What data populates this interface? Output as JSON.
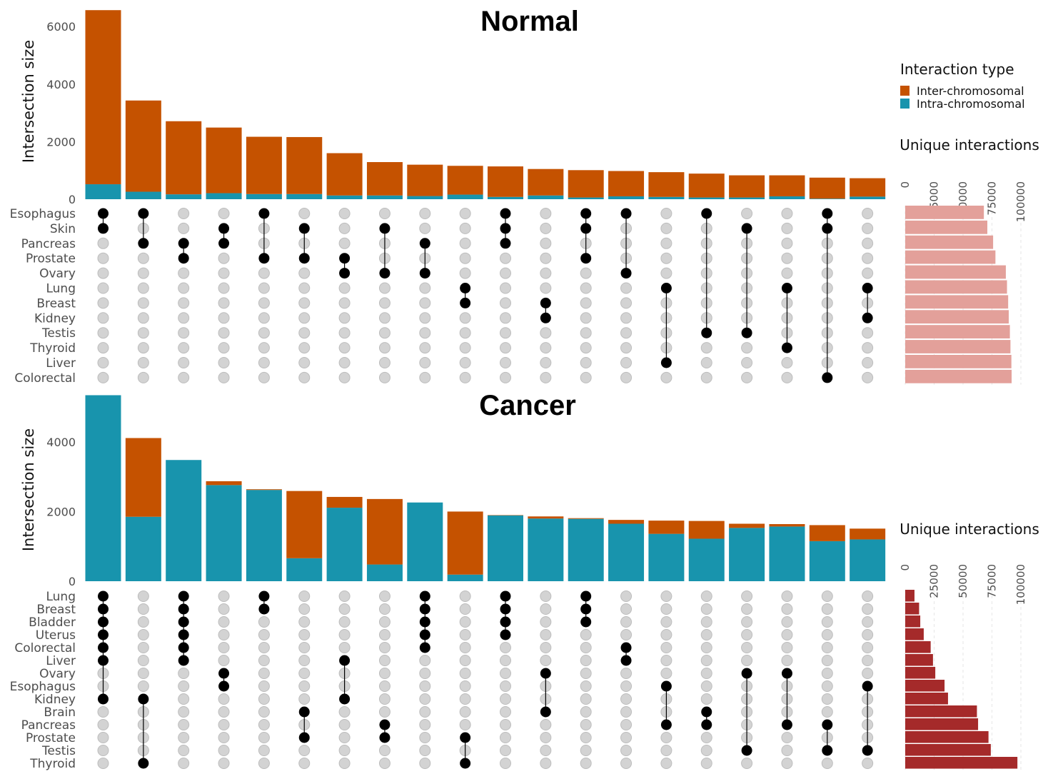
{
  "colors": {
    "inter": "#C55200",
    "intra": "#1894AD",
    "dot_on": "#000000",
    "dot_off": "#D3D3D3",
    "normal_unique_bar": "#E3A09A",
    "cancer_unique_bar": "#A52A2A"
  },
  "legend": {
    "title": "Interaction type",
    "items": [
      "Inter-chromosomal",
      "Intra-chromosomal"
    ]
  },
  "chart_data": [
    {
      "type": "bar",
      "title": "Normal",
      "ylabel": "Intersection size",
      "ylim": [
        0,
        6600
      ],
      "yticks": [
        "0",
        "2000",
        "4000",
        "6000"
      ],
      "sets": [
        "Esophagus",
        "Skin",
        "Pancreas",
        "Prostate",
        "Ovary",
        "Lung",
        "Breast",
        "Kidney",
        "Testis",
        "Thyroid",
        "Liver",
        "Colorectal"
      ],
      "intersections": [
        [
          "Esophagus",
          "Skin"
        ],
        [
          "Esophagus",
          "Pancreas"
        ],
        [
          "Pancreas",
          "Prostate"
        ],
        [
          "Skin",
          "Pancreas"
        ],
        [
          "Esophagus",
          "Prostate"
        ],
        [
          "Skin",
          "Prostate"
        ],
        [
          "Prostate",
          "Ovary"
        ],
        [
          "Skin",
          "Ovary"
        ],
        [
          "Pancreas",
          "Ovary"
        ],
        [
          "Lung",
          "Breast"
        ],
        [
          "Esophagus",
          "Skin",
          "Pancreas"
        ],
        [
          "Breast",
          "Kidney"
        ],
        [
          "Esophagus",
          "Skin",
          "Prostate"
        ],
        [
          "Esophagus",
          "Ovary"
        ],
        [
          "Lung",
          "Liver"
        ],
        [
          "Esophagus",
          "Testis"
        ],
        [
          "Skin",
          "Testis"
        ],
        [
          "Lung",
          "Thyroid"
        ],
        [
          "Esophagus",
          "Skin",
          "Colorectal"
        ],
        [
          "Lung",
          "Kidney"
        ]
      ],
      "series": [
        {
          "name": "Inter-chromosomal",
          "values": [
            6050,
            3170,
            2540,
            2280,
            1990,
            1980,
            1470,
            1160,
            1090,
            1000,
            1060,
            920,
            950,
            880,
            860,
            830,
            770,
            730,
            730,
            640
          ]
        },
        {
          "name": "Intra-chromosomal",
          "values": [
            520,
            260,
            170,
            210,
            180,
            180,
            130,
            130,
            110,
            160,
            80,
            130,
            60,
            100,
            80,
            60,
            60,
            100,
            20,
            90
          ]
        }
      ],
      "unique_interactions": {
        "label": "Unique interactions",
        "xlim": [
          0,
          100000
        ],
        "ticks": [
          "0",
          "25000",
          "50000",
          "75000",
          "100000"
        ],
        "values": [
          68000,
          71000,
          76000,
          78000,
          87000,
          88000,
          89000,
          89500,
          90500,
          91000,
          91800,
          92000
        ]
      }
    },
    {
      "type": "bar",
      "title": "Cancer",
      "ylabel": "Intersection size",
      "ylim": [
        0,
        5350
      ],
      "yticks": [
        "0",
        "2000",
        "4000"
      ],
      "sets": [
        "Lung",
        "Breast",
        "Bladder",
        "Uterus",
        "Colorectal",
        "Liver",
        "Ovary",
        "Esophagus",
        "Kidney",
        "Brain",
        "Pancreas",
        "Prostate",
        "Testis",
        "Thyroid"
      ],
      "intersections": [
        [
          "Lung",
          "Breast",
          "Bladder",
          "Uterus",
          "Colorectal",
          "Liver",
          "Kidney"
        ],
        [
          "Kidney",
          "Thyroid"
        ],
        [
          "Lung",
          "Breast",
          "Bladder",
          "Uterus",
          "Colorectal",
          "Liver"
        ],
        [
          "Ovary",
          "Esophagus"
        ],
        [
          "Lung",
          "Breast"
        ],
        [
          "Brain",
          "Prostate"
        ],
        [
          "Liver",
          "Kidney"
        ],
        [
          "Pancreas",
          "Prostate"
        ],
        [
          "Lung",
          "Breast",
          "Bladder",
          "Uterus",
          "Colorectal"
        ],
        [
          "Prostate",
          "Thyroid"
        ],
        [
          "Lung",
          "Breast",
          "Bladder",
          "Uterus"
        ],
        [
          "Ovary",
          "Brain"
        ],
        [
          "Lung",
          "Breast",
          "Bladder"
        ],
        [
          "Colorectal",
          "Liver"
        ],
        [
          "Esophagus",
          "Pancreas"
        ],
        [
          "Brain",
          "Pancreas"
        ],
        [
          "Ovary",
          "Testis"
        ],
        [
          "Ovary",
          "Pancreas"
        ],
        [
          "Pancreas",
          "Testis"
        ],
        [
          "Esophagus",
          "Testis"
        ]
      ],
      "series": [
        {
          "name": "Inter-chromosomal",
          "values": [
            0,
            2260,
            0,
            110,
            20,
            1930,
            310,
            1880,
            0,
            1810,
            10,
            60,
            20,
            110,
            380,
            510,
            120,
            70,
            460,
            310
          ]
        },
        {
          "name": "Intra-chromosomal",
          "values": [
            5340,
            1850,
            3480,
            2760,
            2620,
            660,
            2110,
            480,
            2260,
            190,
            1890,
            1800,
            1790,
            1650,
            1360,
            1220,
            1530,
            1570,
            1150,
            1200
          ]
        }
      ],
      "unique_interactions": {
        "label": "Unique interactions",
        "xlim": [
          0,
          100000
        ],
        "ticks": [
          "0",
          "25000",
          "50000",
          "75000",
          "100000"
        ],
        "values": [
          8000,
          12000,
          13000,
          16000,
          22000,
          24000,
          26000,
          34000,
          37000,
          62000,
          63000,
          72000,
          74000,
          97000
        ]
      }
    }
  ]
}
